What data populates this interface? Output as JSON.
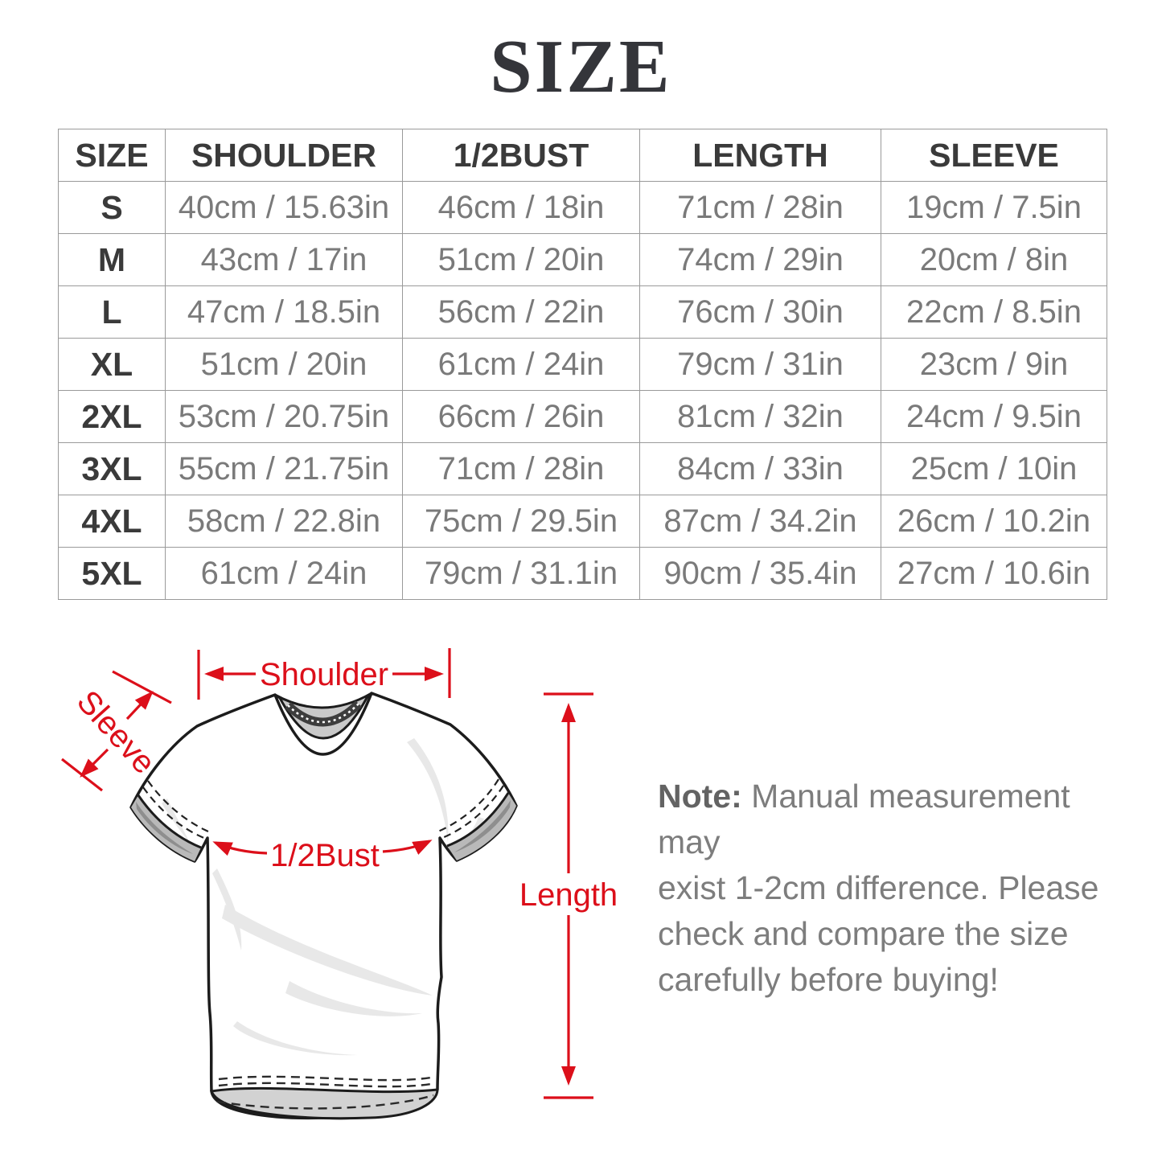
{
  "title": "SIZE",
  "table": {
    "columns": [
      "SIZE",
      "SHOULDER",
      "1/2BUST",
      "LENGTH",
      "SLEEVE"
    ],
    "rows": [
      [
        "S",
        "40cm / 15.63in",
        "46cm / 18in",
        "71cm / 28in",
        "19cm / 7.5in"
      ],
      [
        "M",
        "43cm / 17in",
        "51cm / 20in",
        "74cm / 29in",
        "20cm / 8in"
      ],
      [
        "L",
        "47cm / 18.5in",
        "56cm / 22in",
        "76cm / 30in",
        "22cm / 8.5in"
      ],
      [
        "XL",
        "51cm / 20in",
        "61cm / 24in",
        "79cm / 31in",
        "23cm / 9in"
      ],
      [
        "2XL",
        "53cm / 20.75in",
        "66cm / 26in",
        "81cm / 32in",
        "24cm / 9.5in"
      ],
      [
        "3XL",
        "55cm / 21.75in",
        "71cm / 28in",
        "84cm / 33in",
        "25cm / 10in"
      ],
      [
        "4XL",
        "58cm / 22.8in",
        "75cm / 29.5in",
        "87cm / 34.2in",
        "26cm / 10.2in"
      ],
      [
        "5XL",
        "61cm / 24in",
        "79cm / 31.1in",
        "90cm / 35.4in",
        "27cm / 10.6in"
      ]
    ]
  },
  "diagram": {
    "labels": {
      "shoulder": "Shoulder",
      "sleeve": "Sleeve",
      "bust": "1/2Bust",
      "length": "Length"
    }
  },
  "note": {
    "label": "Note:",
    "first_line": "Manual measurement may",
    "lines": [
      "exist 1-2cm difference. Please",
      "check and compare the size",
      "carefully before buying!"
    ]
  },
  "colors": {
    "accent_red": "#dc0f1a",
    "title_text": "#34353a",
    "header_text": "#3a3a3a",
    "cell_text": "#7a7a7a",
    "table_border": "#9a9a9a",
    "note_text": "#7d7d7d",
    "outline_black": "#1c1c1c",
    "collar_gray": "#c9c9c9",
    "cuff_gray": "#b9b9b9",
    "hem_gray": "#d2d2d2",
    "wrinkle_gray": "#e8e8e8"
  }
}
